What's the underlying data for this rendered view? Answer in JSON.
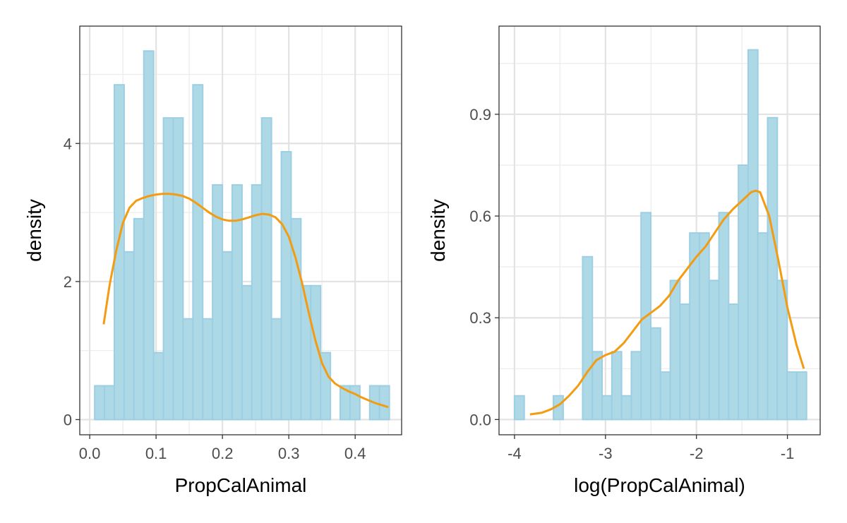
{
  "chart_data": [
    {
      "type": "histogram",
      "xlabel": "PropCalAnimal",
      "ylabel": "density",
      "xlim": [
        -0.015,
        0.47
      ],
      "ylim": [
        -0.22,
        5.7
      ],
      "x_ticks": [
        0.0,
        0.1,
        0.2,
        0.3,
        0.4
      ],
      "x_tick_labels": [
        "0.0",
        "0.1",
        "0.2",
        "0.3",
        "0.4"
      ],
      "y_ticks": [
        0,
        2,
        4
      ],
      "y_tick_labels": [
        "0",
        "2",
        "4"
      ],
      "grid": true,
      "bins": {
        "start": 0.0075,
        "width": 0.0148,
        "values": [
          0.49,
          0.49,
          4.85,
          2.43,
          2.91,
          5.34,
          0.97,
          4.37,
          4.37,
          1.46,
          4.85,
          1.46,
          3.4,
          2.43,
          3.4,
          1.94,
          3.4,
          4.37,
          1.46,
          3.88,
          2.91,
          1.94,
          1.94,
          0.97,
          0,
          0.49,
          0.49,
          0,
          0.49,
          0.49
        ]
      },
      "density_curve": {
        "x": [
          0.021,
          0.03,
          0.04,
          0.05,
          0.06,
          0.07,
          0.08,
          0.09,
          0.1,
          0.11,
          0.12,
          0.13,
          0.14,
          0.15,
          0.16,
          0.17,
          0.18,
          0.19,
          0.2,
          0.21,
          0.22,
          0.23,
          0.24,
          0.25,
          0.26,
          0.27,
          0.28,
          0.29,
          0.3,
          0.31,
          0.32,
          0.33,
          0.34,
          0.35,
          0.36,
          0.37,
          0.38,
          0.39,
          0.4,
          0.41,
          0.42,
          0.43,
          0.44,
          0.45
        ],
        "y": [
          1.38,
          1.95,
          2.45,
          2.85,
          3.07,
          3.17,
          3.21,
          3.24,
          3.26,
          3.27,
          3.27,
          3.26,
          3.24,
          3.2,
          3.14,
          3.07,
          3.0,
          2.94,
          2.9,
          2.88,
          2.88,
          2.9,
          2.93,
          2.96,
          2.98,
          2.97,
          2.93,
          2.83,
          2.65,
          2.35,
          1.98,
          1.55,
          1.15,
          0.82,
          0.62,
          0.52,
          0.46,
          0.41,
          0.37,
          0.32,
          0.28,
          0.24,
          0.21,
          0.18
        ]
      },
      "colors": {
        "bar_fill": "#add8e6",
        "bar_outline": "#9ccfe3",
        "curve": "#f39c12"
      }
    },
    {
      "type": "histogram",
      "xlabel": "log(PropCalAnimal)",
      "ylabel": "density",
      "xlim": [
        -4.17,
        -0.64
      ],
      "ylim": [
        -0.045,
        1.16
      ],
      "x_ticks": [
        -4,
        -3,
        -2,
        -1
      ],
      "x_tick_labels": [
        "-4",
        "-3",
        "-2",
        "-1"
      ],
      "y_ticks": [
        0.0,
        0.3,
        0.6,
        0.9
      ],
      "y_tick_labels": [
        "0.0",
        "0.3",
        "0.6",
        "0.9"
      ],
      "grid": true,
      "bins": {
        "start": -4.0,
        "width": 0.107,
        "values": [
          0.07,
          0,
          0,
          0,
          0.07,
          0,
          0,
          0.48,
          0.2,
          0.07,
          0.2,
          0.07,
          0.2,
          0.61,
          0.27,
          0.14,
          0.41,
          0.34,
          0.55,
          0.55,
          0.41,
          0.61,
          0.34,
          0.75,
          1.09,
          0.55,
          0.89,
          0.41,
          0.14,
          0.14
        ]
      },
      "density_curve": {
        "x": [
          -3.83,
          -3.7,
          -3.6,
          -3.5,
          -3.4,
          -3.3,
          -3.2,
          -3.1,
          -3.0,
          -2.9,
          -2.8,
          -2.7,
          -2.6,
          -2.5,
          -2.4,
          -2.3,
          -2.2,
          -2.1,
          -2.0,
          -1.9,
          -1.8,
          -1.7,
          -1.6,
          -1.5,
          -1.4,
          -1.35,
          -1.3,
          -1.2,
          -1.1,
          -1.0,
          -0.9,
          -0.82
        ],
        "y": [
          0.015,
          0.02,
          0.03,
          0.045,
          0.07,
          0.1,
          0.14,
          0.175,
          0.19,
          0.2,
          0.225,
          0.26,
          0.295,
          0.315,
          0.335,
          0.365,
          0.41,
          0.445,
          0.48,
          0.51,
          0.55,
          0.59,
          0.62,
          0.645,
          0.67,
          0.675,
          0.67,
          0.6,
          0.47,
          0.33,
          0.22,
          0.15
        ]
      },
      "colors": {
        "bar_fill": "#add8e6",
        "bar_outline": "#9ccfe3",
        "curve": "#f39c12"
      }
    }
  ]
}
